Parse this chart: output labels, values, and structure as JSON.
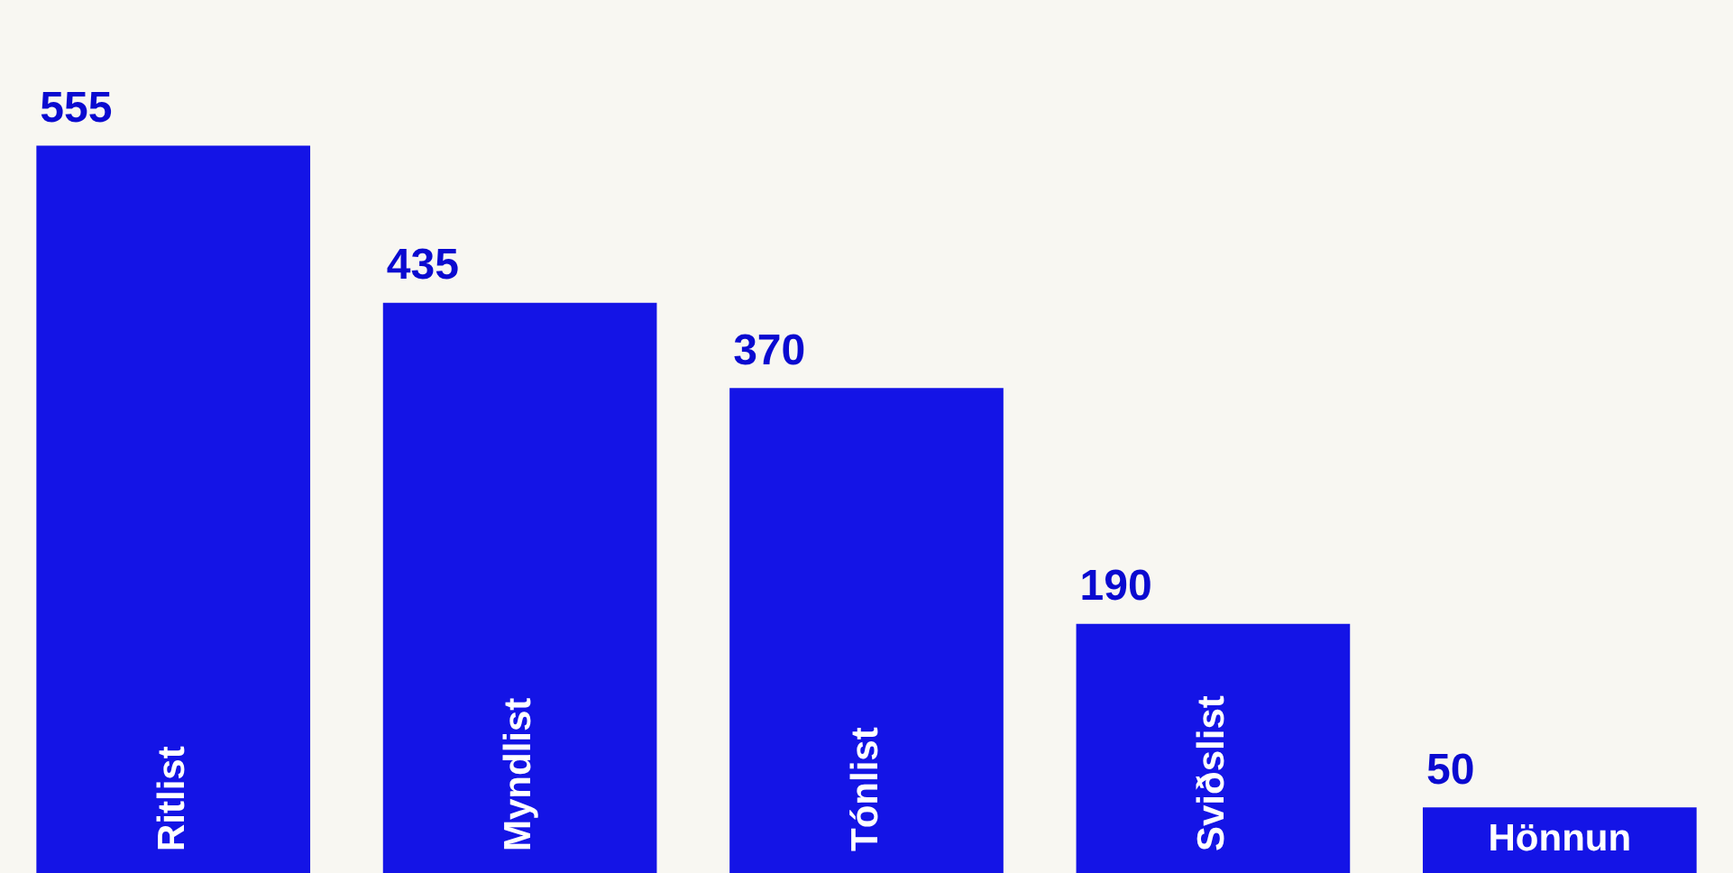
{
  "chart_data": {
    "type": "bar",
    "categories": [
      "Ritlist",
      "Myndlist",
      "Tónlist",
      "Sviðslist",
      "Hönnun"
    ],
    "values": [
      555,
      435,
      370,
      190,
      50
    ],
    "color": "#1414e6",
    "data_labels": true,
    "legend": false,
    "tick_labels": false
  }
}
